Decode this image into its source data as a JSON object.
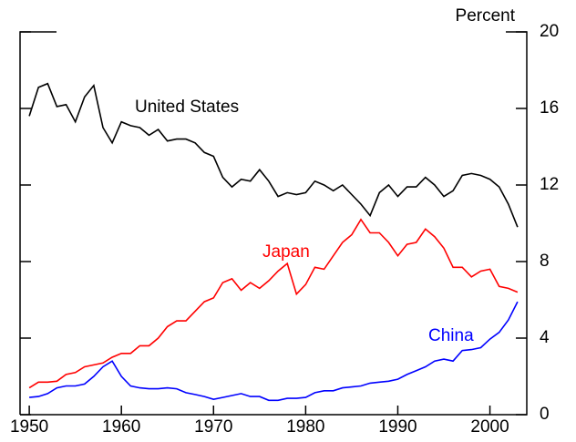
{
  "chart_data": {
    "type": "line",
    "y_label": "Percent",
    "x": [
      1950,
      1951,
      1952,
      1953,
      1954,
      1955,
      1956,
      1957,
      1958,
      1959,
      1960,
      1961,
      1962,
      1963,
      1964,
      1965,
      1966,
      1967,
      1968,
      1969,
      1970,
      1971,
      1972,
      1973,
      1974,
      1975,
      1976,
      1977,
      1978,
      1979,
      1980,
      1981,
      1982,
      1983,
      1984,
      1985,
      1986,
      1987,
      1988,
      1989,
      1990,
      1991,
      1992,
      1993,
      1994,
      1995,
      1996,
      1997,
      1998,
      1999,
      2000,
      2001,
      2002,
      2003
    ],
    "series": [
      {
        "name": "United States",
        "color": "#000000",
        "values": [
          15.6,
          17.1,
          17.3,
          16.1,
          16.2,
          15.3,
          16.6,
          17.2,
          15.0,
          14.2,
          15.3,
          15.1,
          15.0,
          14.6,
          14.9,
          14.3,
          14.4,
          14.4,
          14.2,
          13.7,
          13.5,
          12.4,
          11.9,
          12.3,
          12.2,
          12.8,
          12.2,
          11.4,
          11.6,
          11.5,
          11.6,
          12.2,
          12.0,
          11.7,
          12.0,
          11.5,
          11.0,
          10.4,
          11.6,
          12.0,
          11.4,
          11.9,
          11.9,
          12.4,
          12.0,
          11.4,
          11.7,
          12.5,
          12.6,
          12.5,
          12.3,
          11.9,
          11.0,
          9.8
        ]
      },
      {
        "name": "Japan",
        "color": "#ff0000",
        "values": [
          1.4,
          1.7,
          1.7,
          1.75,
          2.1,
          2.2,
          2.5,
          2.6,
          2.7,
          3.0,
          3.2,
          3.2,
          3.6,
          3.6,
          4.0,
          4.6,
          4.9,
          4.9,
          5.4,
          5.9,
          6.1,
          6.9,
          7.1,
          6.5,
          6.9,
          6.6,
          7.0,
          7.5,
          7.9,
          6.3,
          6.8,
          7.7,
          7.6,
          8.3,
          9.0,
          9.4,
          10.2,
          9.5,
          9.5,
          9.0,
          8.3,
          8.9,
          9.0,
          9.7,
          9.3,
          8.7,
          7.7,
          7.7,
          7.2,
          7.5,
          7.6,
          6.7,
          6.6,
          6.4
        ]
      },
      {
        "name": "China",
        "color": "#0000ff",
        "values": [
          0.9,
          0.95,
          1.1,
          1.4,
          1.5,
          1.5,
          1.6,
          2.0,
          2.5,
          2.8,
          2.0,
          1.5,
          1.4,
          1.35,
          1.35,
          1.4,
          1.35,
          1.15,
          1.05,
          0.95,
          0.8,
          0.9,
          1.0,
          1.1,
          0.95,
          0.95,
          0.75,
          0.75,
          0.85,
          0.85,
          0.9,
          1.15,
          1.25,
          1.25,
          1.4,
          1.45,
          1.5,
          1.65,
          1.7,
          1.75,
          1.85,
          2.1,
          2.3,
          2.5,
          2.8,
          2.9,
          2.8,
          3.35,
          3.4,
          3.5,
          3.95,
          4.3,
          4.95,
          5.9
        ]
      }
    ],
    "xlim": [
      1949,
      2004
    ],
    "xticks": [
      1950,
      1960,
      1970,
      1980,
      1990,
      2000
    ],
    "ylim": [
      0,
      20
    ],
    "yticks": [
      0,
      4,
      8,
      12,
      16,
      20
    ]
  }
}
